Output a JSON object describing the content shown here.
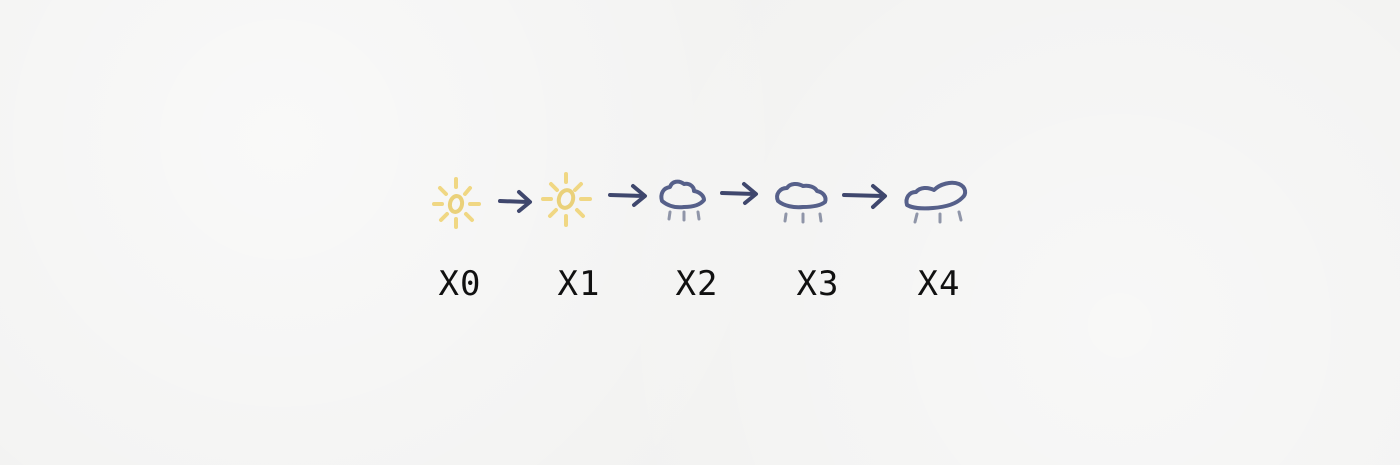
{
  "colors": {
    "sun": "#f0d57a",
    "sun_core": "#ead17a",
    "cloud": "#56608a",
    "rain": "#8f95a8",
    "arrow": "#3f476d",
    "label": "#111111"
  },
  "diagram": {
    "states": [
      {
        "label": "X0",
        "icon": "sun-icon"
      },
      {
        "label": "X1",
        "icon": "sun-icon"
      },
      {
        "label": "X2",
        "icon": "rain-cloud-icon"
      },
      {
        "label": "X3",
        "icon": "rain-cloud-icon"
      },
      {
        "label": "X4",
        "icon": "rain-cloud-icon"
      }
    ],
    "transitions": [
      {
        "from": "X0",
        "to": "X1",
        "icon": "arrow-right-icon"
      },
      {
        "from": "X1",
        "to": "X2",
        "icon": "arrow-right-icon"
      },
      {
        "from": "X2",
        "to": "X3",
        "icon": "arrow-right-icon"
      },
      {
        "from": "X3",
        "to": "X4",
        "icon": "arrow-right-icon"
      }
    ]
  }
}
